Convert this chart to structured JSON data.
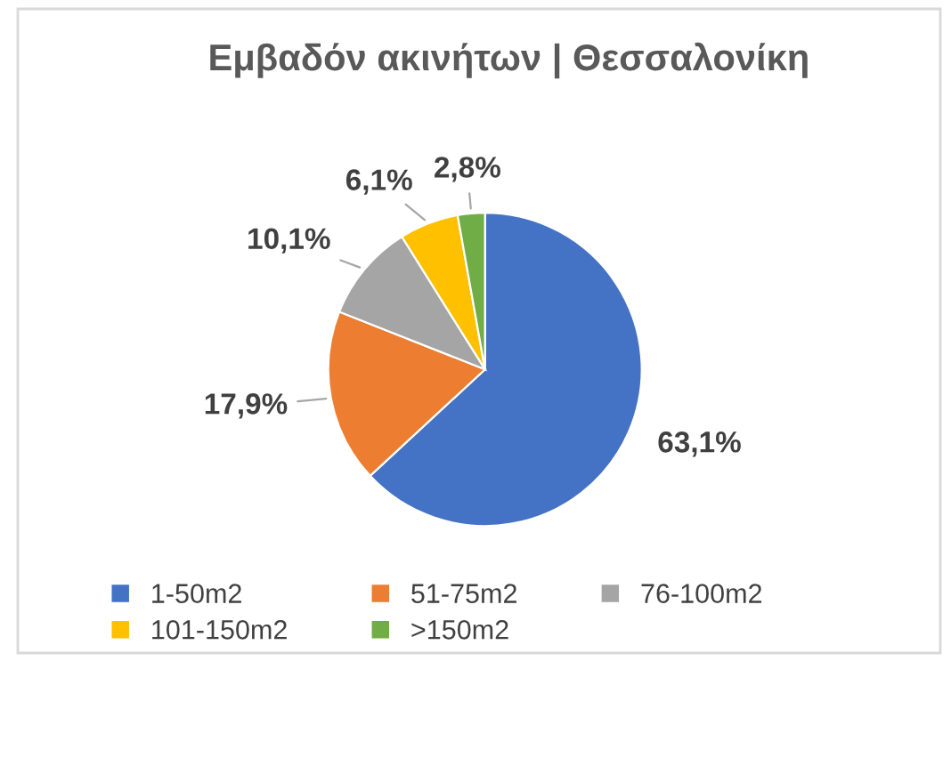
{
  "chart_data": {
    "type": "pie",
    "title": "Εμβαδόν ακινήτων | Θεσσαλονίκη",
    "categories": [
      "1-50m2",
      "51-75m2",
      "76-100m2",
      "101-150m2",
      ">150m2"
    ],
    "values": [
      63.1,
      17.9,
      10.1,
      6.1,
      2.8
    ],
    "colors": [
      "#4472c4",
      "#ed7d31",
      "#a5a5a5",
      "#ffc000",
      "#70ad47"
    ],
    "value_labels": [
      "63,1%",
      "17,9%",
      "10,1%",
      "6,1%",
      "2,8%"
    ],
    "legend": "bottom"
  }
}
